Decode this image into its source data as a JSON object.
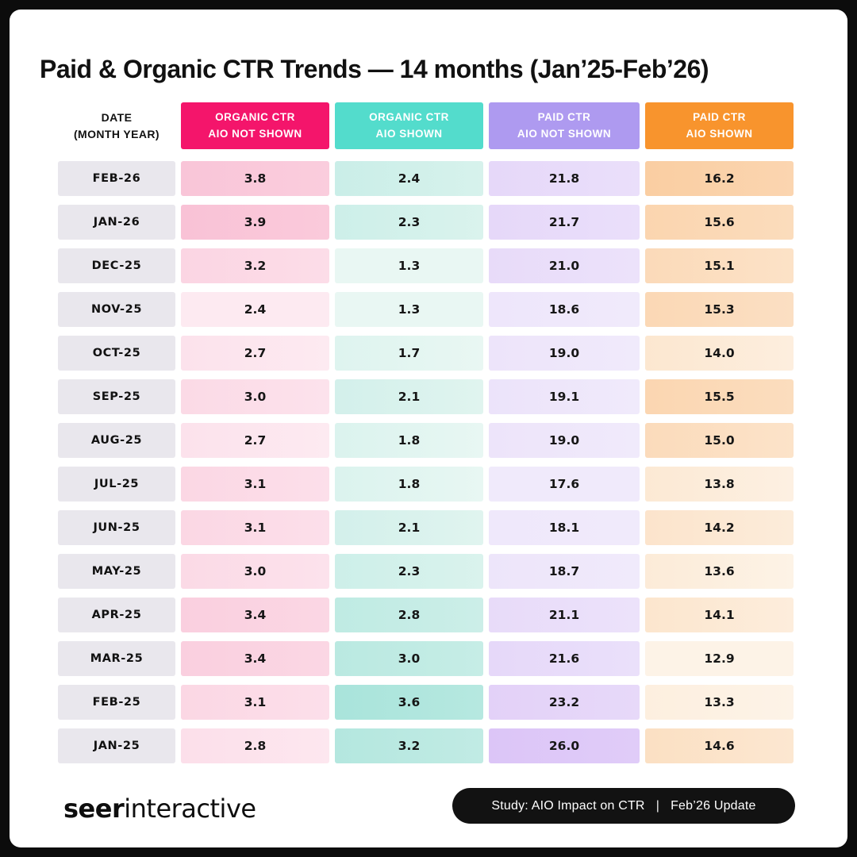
{
  "frame_color": "#0C0C0C",
  "card_color": "#FFFFFF",
  "title": "Paid & Organic CTR Trends — 14 months (Jan’25-Feb’26)",
  "table": {
    "date_header": {
      "line1": "DATE",
      "line2": "(MONTH YEAR)"
    },
    "date_cell_bg": "#E9E7ED",
    "value_text_color": "#161616",
    "columns": [
      {
        "id": "organic-ctr-aio-not-shown",
        "line1": "ORGANIC CTR",
        "line2": "AIO NOT SHOWN",
        "header_bg": "#F4156B",
        "header_text": "#FFFFFF",
        "heat_light": "#FDEAF1",
        "heat_strong": "#F9C2D6"
      },
      {
        "id": "organic-ctr-aio-shown",
        "line1": "ORGANIC CTR",
        "line2": "AIO SHOWN",
        "header_bg": "#53DCCC",
        "header_text": "#FFFFFF",
        "heat_light": "#E9F7F3",
        "heat_strong": "#A9E4DB"
      },
      {
        "id": "paid-ctr-aio-not-shown",
        "line1": "PAID CTR",
        "line2": "AIO NOT SHOWN",
        "header_bg": "#AE9AF0",
        "header_text": "#FFFFFF",
        "heat_light": "#F0EAFB",
        "heat_strong": "#DCC5F7"
      },
      {
        "id": "paid-ctr-aio-shown",
        "line1": "PAID CTR",
        "line2": "AIO SHOWN",
        "header_bg": "#F8942D",
        "header_text": "#FFFFFF",
        "heat_light": "#FDF3E7",
        "heat_strong": "#FACEA2"
      }
    ]
  },
  "chart_data": {
    "type": "table",
    "subtype": "heatmap",
    "title": "Paid & Organic CTR Trends — 14 months (Jan’25-Feb’26)",
    "categories": [
      "FEB-26",
      "JAN-26",
      "DEC-25",
      "NOV-25",
      "OCT-25",
      "SEP-25",
      "AUG-25",
      "JUL-25",
      "JUN-25",
      "MAY-25",
      "APR-25",
      "MAR-25",
      "FEB-25",
      "JAN-25"
    ],
    "series": [
      {
        "name": "ORGANIC CTR AIO NOT SHOWN",
        "values": [
          3.8,
          3.9,
          3.2,
          2.4,
          2.7,
          3.0,
          2.7,
          3.1,
          3.1,
          3.0,
          3.4,
          3.4,
          3.1,
          2.8
        ]
      },
      {
        "name": "ORGANIC CTR AIO SHOWN",
        "values": [
          2.4,
          2.3,
          1.3,
          1.3,
          1.7,
          2.1,
          1.8,
          1.8,
          2.1,
          2.3,
          2.8,
          3.0,
          3.6,
          3.2
        ]
      },
      {
        "name": "PAID CTR AIO NOT SHOWN",
        "values": [
          21.8,
          21.7,
          21.0,
          18.6,
          19.0,
          19.1,
          19.0,
          17.6,
          18.1,
          18.7,
          21.1,
          21.6,
          23.2,
          26.0
        ]
      },
      {
        "name": "PAID CTR AIO SHOWN",
        "values": [
          16.2,
          15.6,
          15.1,
          15.3,
          14.0,
          15.5,
          15.0,
          13.8,
          14.2,
          13.6,
          14.1,
          12.9,
          13.3,
          14.6
        ]
      }
    ]
  },
  "footer": {
    "logo_bold": "seer",
    "logo_light": "interactive",
    "badge_bg": "#121212",
    "badge_text": "#FFFFFF",
    "badge": {
      "study": "Study: AIO Impact on CTR",
      "separator": "|",
      "update": "Feb’26 Update"
    }
  }
}
